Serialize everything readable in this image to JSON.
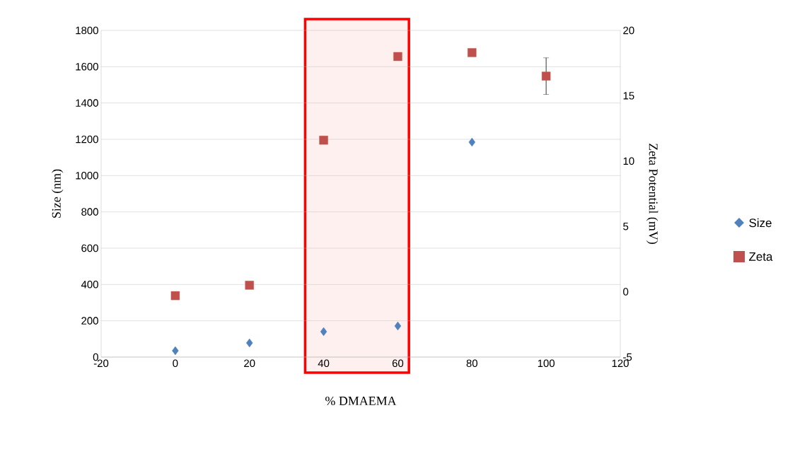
{
  "chart_data": {
    "type": "scatter",
    "xlabel": "% DMAEMA",
    "ylabel": "Size (nm)",
    "y2label": "Zeta Potential (mV)",
    "x": [
      0,
      20,
      40,
      60,
      80,
      100
    ],
    "xlim": [
      -20,
      120
    ],
    "xticks": [
      -20,
      0,
      20,
      40,
      60,
      80,
      100,
      120
    ],
    "ylim": [
      0,
      1800
    ],
    "yticks": [
      0,
      200,
      400,
      600,
      800,
      1000,
      1200,
      1400,
      1600,
      1800
    ],
    "y2lim": [
      -5,
      20
    ],
    "y2ticks": [
      -5,
      0,
      5,
      10,
      15,
      20
    ],
    "grid": "y",
    "legend": "right",
    "series": [
      {
        "name": "Size",
        "color": "#4f81bd",
        "marker": "diamond",
        "values": [
          35,
          78,
          140,
          171,
          1184,
          null
        ]
      },
      {
        "name": "Zeta",
        "color": "#c0504d",
        "marker": "square",
        "axis": "y2",
        "values": [
          -0.3,
          0.5,
          11.6,
          18.0,
          18.3,
          16.5
        ],
        "errors": [
          null,
          null,
          null,
          null,
          null,
          1.4
        ]
      }
    ],
    "bands": [
      {
        "axis": "x",
        "from": 35,
        "to": 63,
        "color": "#ff0000"
      }
    ]
  }
}
